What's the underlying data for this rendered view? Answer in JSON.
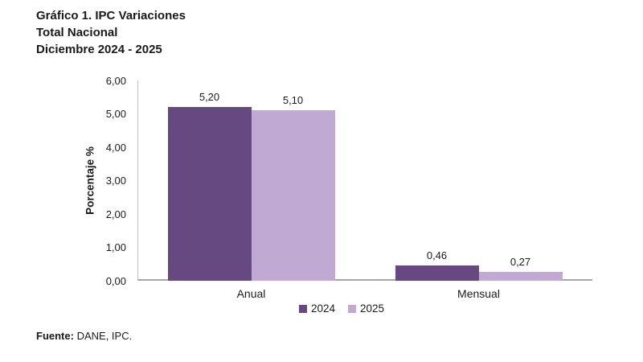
{
  "title": {
    "lines": "Gráfico 1. IPC Variaciones\nTotal Nacional\nDiciembre 2024 - 2025"
  },
  "footer": {
    "source_label": "Fuente:",
    "source_text": "DANE, IPC."
  },
  "colors": {
    "series_2024": "#654980",
    "series_2025": "#c0a9d2",
    "axis_line": "#bfbfbf",
    "baseline": "#a6a6a6",
    "text": "#1a1a1a"
  },
  "chart_data": {
    "type": "bar",
    "title": "Gráfico 1. IPC Variaciones Total Nacional Diciembre 2024 - 2025",
    "categories": [
      "Anual",
      "Mensual"
    ],
    "series": [
      {
        "name": "2024",
        "color": "#654980",
        "values": [
          5.2,
          0.46
        ],
        "labels": [
          "5,20",
          "0,46"
        ]
      },
      {
        "name": "2025",
        "color": "#c0a9d2",
        "values": [
          5.1,
          0.27
        ],
        "labels": [
          "5,10",
          "0,27"
        ]
      }
    ],
    "xlabel": "",
    "ylabel": "Porcentaje %",
    "ylim": [
      0,
      6
    ],
    "ytick_values": [
      0,
      1,
      2,
      3,
      4,
      5,
      6
    ],
    "ytick_labels": [
      "0,00",
      "1,00",
      "2,00",
      "3,00",
      "4,00",
      "5,00",
      "6,00"
    ],
    "grid": false,
    "legend_position": "bottom"
  }
}
